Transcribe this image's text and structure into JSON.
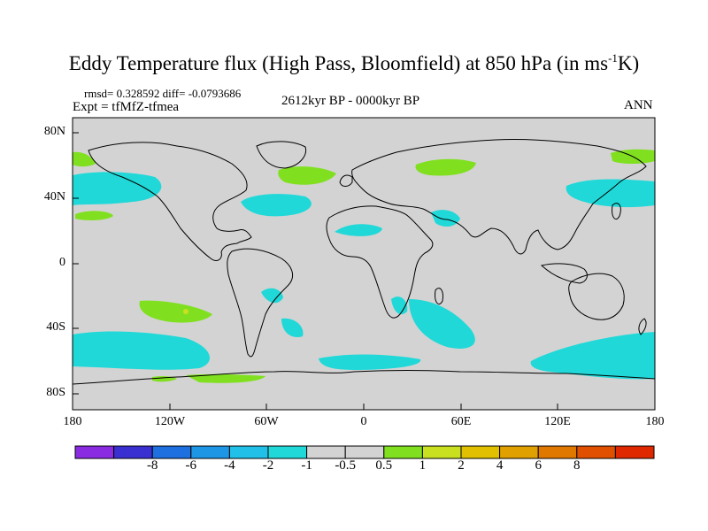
{
  "title": {
    "main": "Eddy Temperature flux (High Pass, Bloomfield) at 850 hPa (in ms",
    "sup": "-1",
    "end": "K)"
  },
  "stats_line": "rmsd= 0.328592 diff= -0.0793686",
  "experiment_line": "Expt = tfMfZ-tfmea",
  "period": "2612kyr BP - 0000kyr BP",
  "season": "ANN",
  "axes": {
    "y_ticks": [
      "80N",
      "40N",
      "0",
      "40S",
      "80S"
    ],
    "x_ticks": [
      "180",
      "120W",
      "60W",
      "0",
      "60E",
      "120E",
      "180"
    ]
  },
  "colorbar": {
    "colors": [
      "#8a2be2",
      "#3a2fd0",
      "#1e6fe0",
      "#1e96e6",
      "#20c0e8",
      "#20d8d8",
      "#d3d3d3",
      "#d3d3d3",
      "#80e020",
      "#c8e020",
      "#e0c000",
      "#e0a000",
      "#e07800",
      "#e05000",
      "#e02800"
    ],
    "labels": [
      "-8",
      "-6",
      "-4",
      "-2",
      "-1",
      "-0.5",
      "0.5",
      "1",
      "2",
      "4",
      "6",
      "8"
    ]
  },
  "colors": {
    "land_sea_background": "#d3d3d3",
    "negative_anomaly": "#20d8d8",
    "positive_anomaly": "#80e020",
    "coastline": "#000000"
  }
}
